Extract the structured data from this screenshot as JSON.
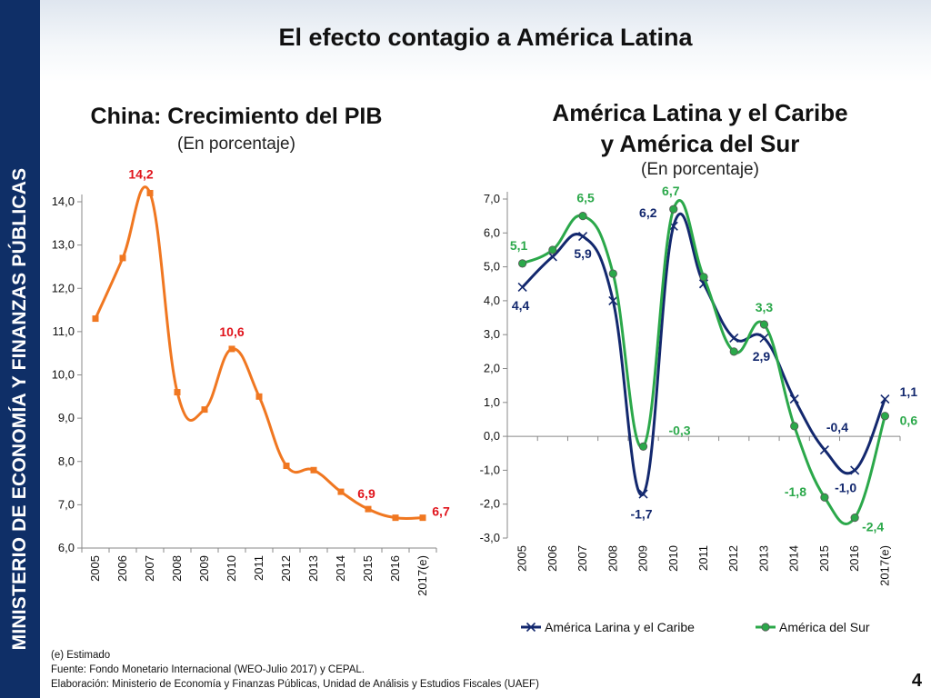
{
  "sidebar": {
    "text": "MINISTERIO DE ECONOMÍA Y FINANZAS PÚBLICAS"
  },
  "slide": {
    "title": "El efecto contagio a América Latina",
    "page_number": "4"
  },
  "colors": {
    "sidebar": "#0f2f67",
    "china_line": "#f07721",
    "china_label": "#e0141c",
    "latam_line": "#13286e",
    "southam_line": "#2ba84a",
    "axis": "#888888"
  },
  "footnotes": {
    "estimado": "(e) Estimado",
    "fuente": "Fuente: Fondo Monetario Internacional (WEO-Julio 2017) y CEPAL.",
    "elaboracion": "Elaboración: Ministerio de Economía y Finanzas Públicas, Unidad de Análisis y Estudios Fiscales (UAEF)"
  },
  "chart_data": [
    {
      "type": "line",
      "title": "China: Crecimiento del PIB",
      "subtitle": "(En porcentaje)",
      "categories": [
        "2005",
        "2006",
        "2007",
        "2008",
        "2009",
        "2010",
        "2011",
        "2012",
        "2013",
        "2014",
        "2015",
        "2016",
        "2017(e)"
      ],
      "series": [
        {
          "name": "China",
          "values": [
            11.3,
            12.7,
            14.2,
            9.6,
            9.2,
            10.6,
            9.5,
            7.9,
            7.8,
            7.3,
            6.9,
            6.7,
            6.7
          ]
        }
      ],
      "ylim": [
        6.0,
        14.0
      ],
      "yticks": [
        "6,0",
        "7,0",
        "8,0",
        "9,0",
        "10,0",
        "11,0",
        "12,0",
        "13,0",
        "14,0"
      ],
      "data_labels": [
        {
          "index": 2,
          "text": "14,2"
        },
        {
          "index": 5,
          "text": "10,6"
        },
        {
          "index": 10,
          "text": "6,9"
        },
        {
          "index": 12,
          "text": "6,7"
        }
      ]
    },
    {
      "type": "line",
      "title_line1": "América Latina y el Caribe",
      "title_line2": "y América del Sur",
      "subtitle": "(En porcentaje)",
      "categories": [
        "2005",
        "2006",
        "2007",
        "2008",
        "2009",
        "2010",
        "2011",
        "2012",
        "2013",
        "2014",
        "2015",
        "2016",
        "2017(e)"
      ],
      "series": [
        {
          "name": "América Larina y el Caribe",
          "values": [
            4.4,
            5.3,
            5.9,
            4.0,
            -1.7,
            6.2,
            4.5,
            2.9,
            2.9,
            1.1,
            -0.4,
            -1.0,
            1.1
          ]
        },
        {
          "name": "América del Sur",
          "values": [
            5.1,
            5.5,
            6.5,
            4.8,
            -0.3,
            6.7,
            4.7,
            2.5,
            3.3,
            0.3,
            -1.8,
            -2.4,
            0.6
          ]
        }
      ],
      "ylim": [
        -3.0,
        7.0
      ],
      "yticks": [
        "-3,0",
        "-2,0",
        "-1,0",
        "0,0",
        "1,0",
        "2,0",
        "3,0",
        "4,0",
        "5,0",
        "6,0",
        "7,0"
      ],
      "legend": [
        "América Larina y el Caribe",
        "América del Sur"
      ],
      "data_labels": [
        {
          "series": 0,
          "index": 0,
          "text": "4,4"
        },
        {
          "series": 0,
          "index": 2,
          "text": "5,9"
        },
        {
          "series": 0,
          "index": 4,
          "text": "-1,7"
        },
        {
          "series": 0,
          "index": 5,
          "text": "6,2"
        },
        {
          "series": 0,
          "index": 8,
          "text": "2,9"
        },
        {
          "series": 0,
          "index": 10,
          "text": "-0,4"
        },
        {
          "series": 0,
          "index": 11,
          "text": "-1,0"
        },
        {
          "series": 0,
          "index": 12,
          "text": "1,1"
        },
        {
          "series": 1,
          "index": 0,
          "text": "5,1"
        },
        {
          "series": 1,
          "index": 2,
          "text": "6,5"
        },
        {
          "series": 1,
          "index": 4,
          "text": "-0,3"
        },
        {
          "series": 1,
          "index": 5,
          "text": "6,7"
        },
        {
          "series": 1,
          "index": 8,
          "text": "3,3"
        },
        {
          "series": 1,
          "index": 10,
          "text": "-1,8"
        },
        {
          "series": 1,
          "index": 11,
          "text": "-2,4"
        },
        {
          "series": 1,
          "index": 12,
          "text": "0,6"
        }
      ]
    }
  ]
}
